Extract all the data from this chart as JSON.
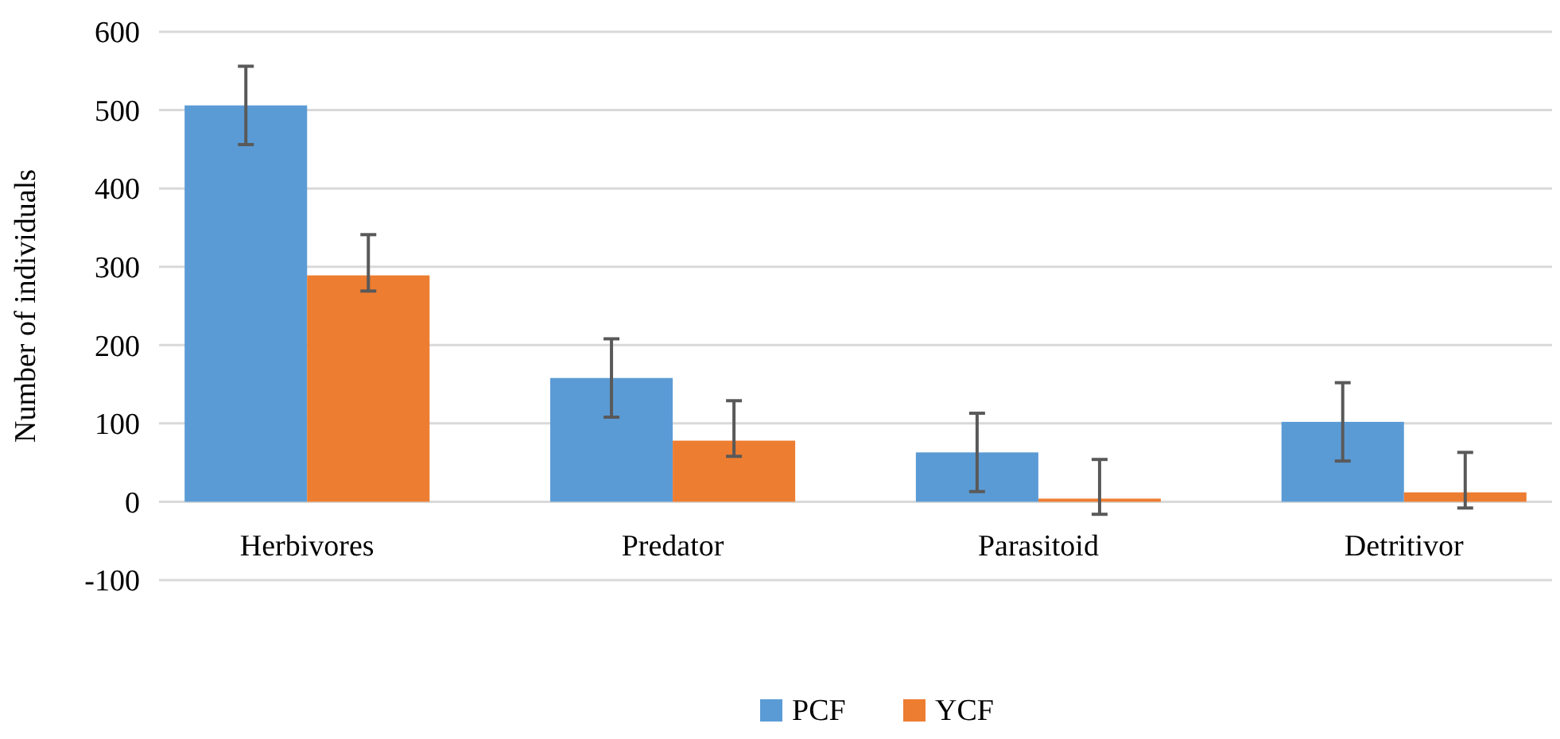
{
  "chart_data": {
    "type": "bar",
    "ylabel": "Number of individuals",
    "categories": [
      "Herbivores",
      "Predator",
      "Parasitoid",
      "Detritivor"
    ],
    "series": [
      {
        "name": "PCF",
        "color": "#5b9bd5",
        "values": [
          506,
          158,
          63,
          102
        ],
        "errors": [
          50,
          50,
          50,
          50
        ]
      },
      {
        "name": "YCF",
        "color": "#ed7d31",
        "values": [
          289,
          78,
          4,
          12
        ],
        "errors": [
          [
            269,
            341
          ],
          [
            58,
            129
          ],
          [
            -16,
            54
          ],
          [
            -8,
            63
          ]
        ]
      }
    ],
    "ylim": [
      -100,
      600
    ],
    "yticks": [
      -100,
      0,
      100,
      200,
      300,
      400,
      500,
      600
    ],
    "grid": "y",
    "legend": "bottom"
  }
}
